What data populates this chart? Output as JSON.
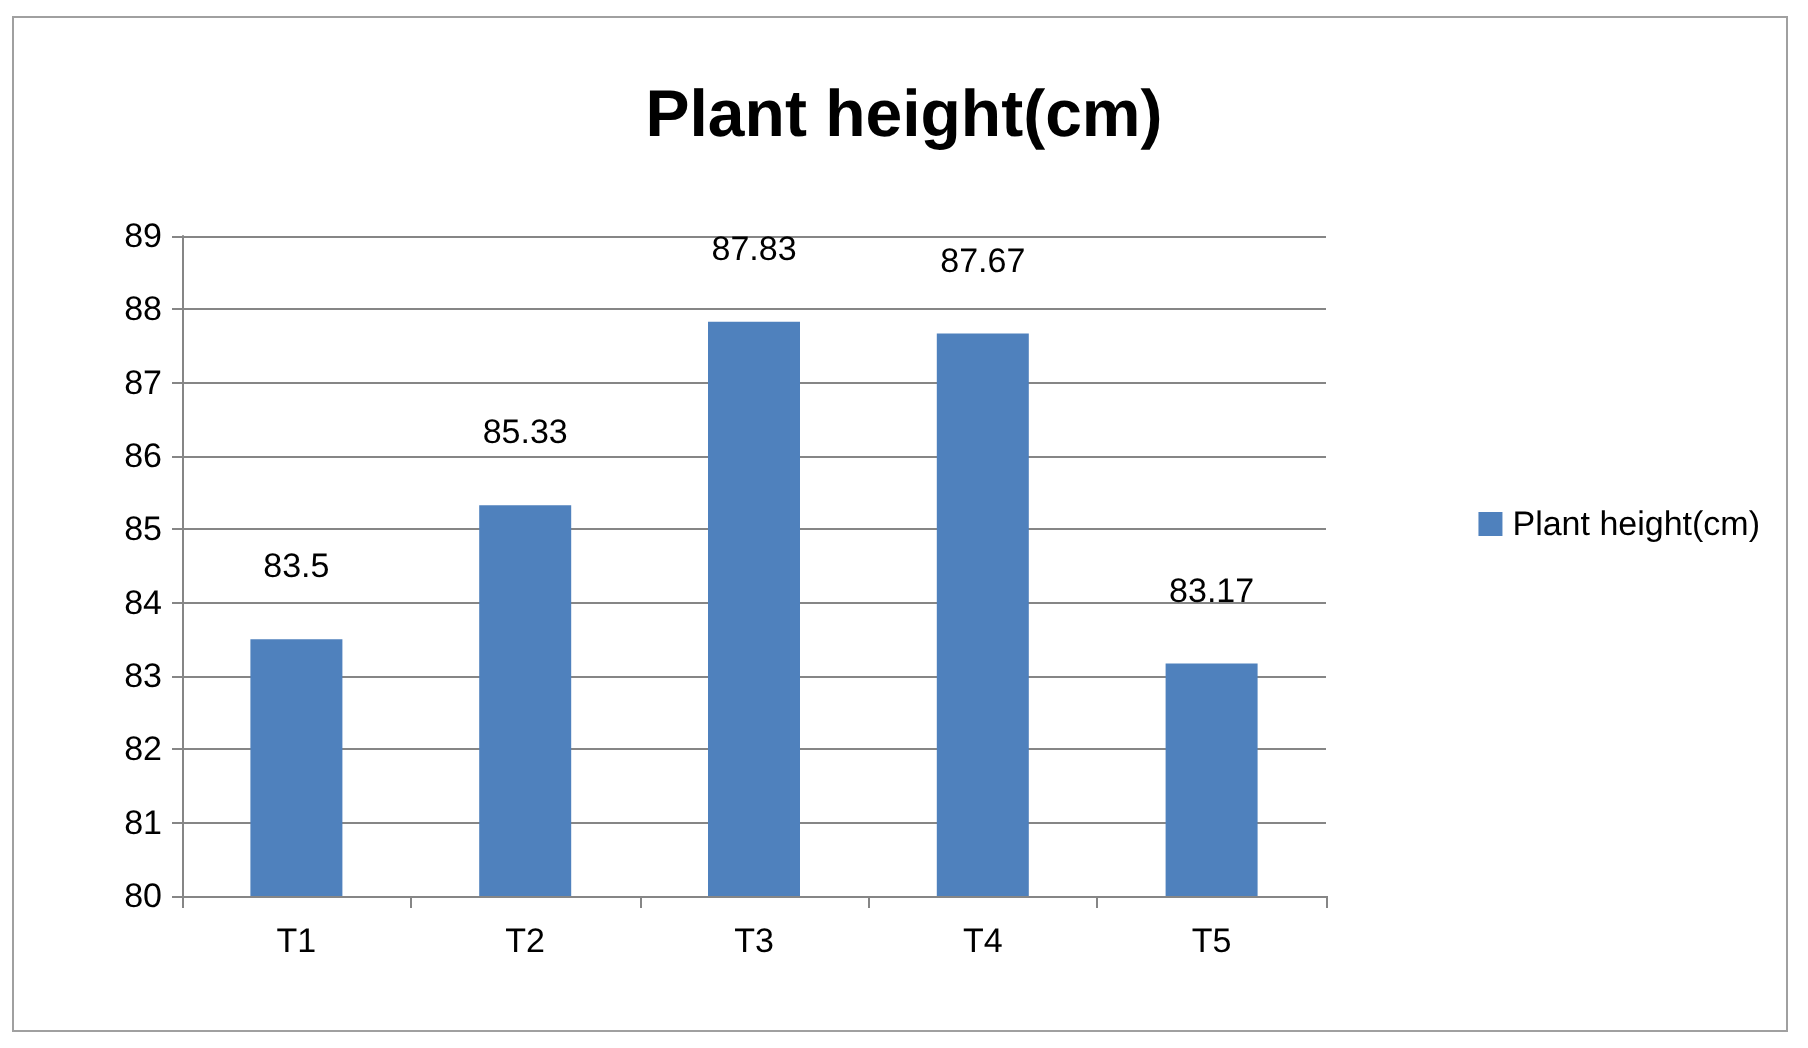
{
  "chart_data": {
    "type": "bar",
    "title": "Plant height(cm)",
    "categories": [
      "T1",
      "T2",
      "T3",
      "T4",
      "T5"
    ],
    "series": [
      {
        "name": "Plant height(cm)",
        "color": "#4f81bd",
        "values": [
          83.5,
          85.33,
          87.83,
          87.67,
          83.17
        ]
      }
    ],
    "ylim": [
      80,
      89
    ],
    "yticks": [
      80,
      81,
      82,
      83,
      84,
      85,
      86,
      87,
      88,
      89
    ],
    "grid": "y",
    "legend": "right",
    "data_labels": true
  }
}
